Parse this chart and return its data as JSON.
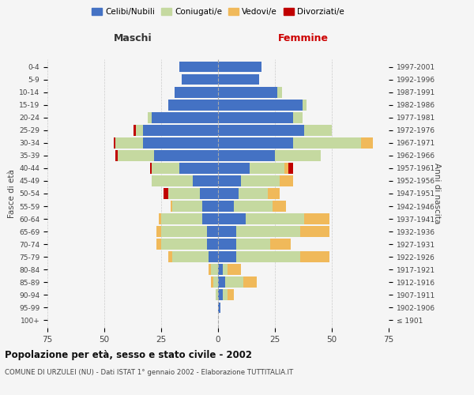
{
  "age_groups": [
    "100+",
    "95-99",
    "90-94",
    "85-89",
    "80-84",
    "75-79",
    "70-74",
    "65-69",
    "60-64",
    "55-59",
    "50-54",
    "45-49",
    "40-44",
    "35-39",
    "30-34",
    "25-29",
    "20-24",
    "15-19",
    "10-14",
    "5-9",
    "0-4"
  ],
  "year_labels": [
    "≤ 1901",
    "1902-1906",
    "1907-1911",
    "1912-1916",
    "1917-1921",
    "1922-1926",
    "1927-1931",
    "1932-1936",
    "1937-1941",
    "1942-1946",
    "1947-1951",
    "1952-1956",
    "1957-1961",
    "1962-1966",
    "1967-1971",
    "1972-1976",
    "1977-1981",
    "1982-1986",
    "1987-1991",
    "1992-1996",
    "1997-2001"
  ],
  "colors": {
    "celibi": "#4472c4",
    "coniugati": "#c5d9a0",
    "vedovi": "#f0b95a",
    "divorziati": "#c00000"
  },
  "maschi": {
    "celibi": [
      0,
      0,
      0,
      0,
      0,
      4,
      5,
      5,
      7,
      7,
      8,
      11,
      17,
      28,
      33,
      33,
      29,
      22,
      19,
      16,
      17
    ],
    "coniugati": [
      0,
      0,
      1,
      2,
      3,
      16,
      20,
      20,
      18,
      13,
      14,
      18,
      12,
      16,
      12,
      3,
      2,
      0,
      0,
      0,
      0
    ],
    "vedovi": [
      0,
      0,
      0,
      1,
      1,
      2,
      2,
      2,
      1,
      1,
      0,
      0,
      0,
      0,
      0,
      0,
      0,
      0,
      0,
      0,
      0
    ],
    "divorziati": [
      0,
      0,
      0,
      0,
      0,
      0,
      0,
      0,
      0,
      0,
      2,
      0,
      1,
      1,
      1,
      1,
      0,
      0,
      0,
      0,
      0
    ]
  },
  "femmine": {
    "celibi": [
      0,
      1,
      2,
      3,
      2,
      8,
      8,
      8,
      12,
      7,
      9,
      10,
      14,
      25,
      33,
      38,
      33,
      37,
      26,
      18,
      19
    ],
    "coniugati": [
      0,
      0,
      2,
      8,
      2,
      28,
      15,
      28,
      26,
      17,
      13,
      17,
      15,
      20,
      30,
      12,
      4,
      2,
      2,
      0,
      0
    ],
    "vedovi": [
      0,
      0,
      3,
      6,
      6,
      13,
      9,
      13,
      11,
      6,
      5,
      6,
      2,
      0,
      5,
      0,
      0,
      0,
      0,
      0,
      0
    ],
    "divorziati": [
      0,
      0,
      0,
      0,
      0,
      0,
      0,
      0,
      0,
      0,
      0,
      0,
      2,
      0,
      0,
      0,
      0,
      0,
      0,
      0,
      0
    ]
  },
  "xlim": 75,
  "title": "Popolazione per età, sesso e stato civile - 2002",
  "subtitle": "COMUNE DI URZULEI (NU) - Dati ISTAT 1° gennaio 2002 - Elaborazione TUTTITALIA.IT",
  "xlabel_left": "Maschi",
  "xlabel_right": "Femmine",
  "ylabel": "Fasce di età",
  "ylabel_right": "Anni di nascita",
  "legend_labels": [
    "Celibi/Nubili",
    "Coniugati/e",
    "Vedovi/e",
    "Divorziati/e"
  ],
  "bg_color": "#f5f5f5",
  "bar_height": 0.85
}
